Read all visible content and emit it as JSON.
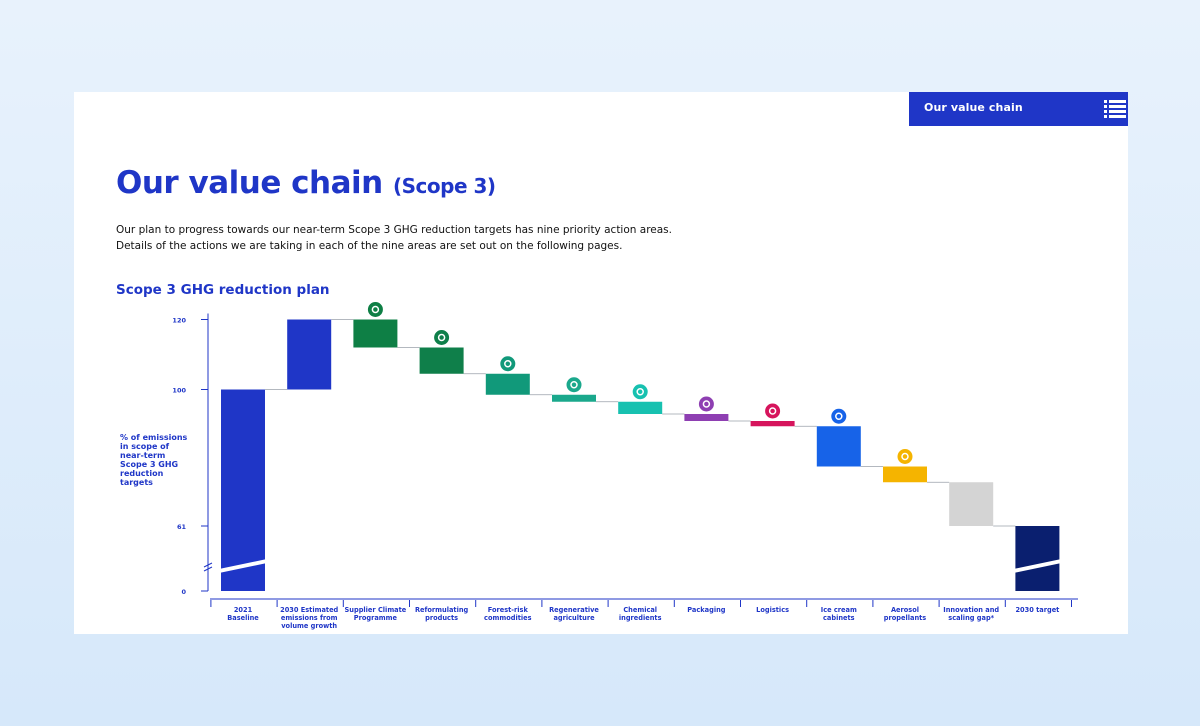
{
  "header": {
    "nav_title": "Our value chain",
    "menu_icon": "menu-icon"
  },
  "page": {
    "title_main": "Our value chain",
    "title_sub": "(Scope 3)",
    "intro_line1": "Our plan to progress towards our near-term Scope 3 GHG reduction targets has nine priority action areas.",
    "intro_line2": "Details of the actions we are taking in each of the nine areas are set out on the following pages.",
    "chart_heading": "Scope 3 GHG reduction plan"
  },
  "colors": {
    "brand": "#1f36c7",
    "background": "#ffffff"
  },
  "chart_data": {
    "type": "waterfall",
    "title": "Scope 3 GHG reduction plan",
    "ylabel_lines": [
      "% of emissions",
      "in scope of",
      "near-term",
      "Scope 3 GHG",
      "reduction",
      "targets"
    ],
    "y_ticks": [
      0,
      61,
      100,
      120
    ],
    "axis_break": true,
    "ylim": [
      0,
      120
    ],
    "steps": [
      {
        "label_lines": [
          "2021",
          "Baseline"
        ],
        "kind": "total",
        "start": 0,
        "end": 100,
        "color": "#1f36c7",
        "icon": null
      },
      {
        "label_lines": [
          "2030 Estimated",
          "emissions from",
          "volume growth"
        ],
        "kind": "increase",
        "start": 100,
        "end": 120,
        "color": "#1f36c7",
        "icon": null
      },
      {
        "label_lines": [
          "Supplier Climate",
          "Programme"
        ],
        "kind": "decrease",
        "start": 120,
        "end": 112,
        "color": "#0e7f45",
        "icon": "supplier-icon"
      },
      {
        "label_lines": [
          "Reformulating",
          "products"
        ],
        "kind": "decrease",
        "start": 112,
        "end": 104.5,
        "color": "#0f7f4a",
        "icon": "reformulating-icon"
      },
      {
        "label_lines": [
          "Forest-risk",
          "commodities"
        ],
        "kind": "decrease",
        "start": 104.5,
        "end": 98.5,
        "color": "#11997a",
        "icon": "forest-icon"
      },
      {
        "label_lines": [
          "Regenerative",
          "agriculture"
        ],
        "kind": "decrease",
        "start": 98.5,
        "end": 96.5,
        "color": "#1aa88c",
        "icon": "agriculture-icon"
      },
      {
        "label_lines": [
          "Chemical",
          "ingredients"
        ],
        "kind": "decrease",
        "start": 96.5,
        "end": 93,
        "color": "#17c1b0",
        "icon": "chemical-icon"
      },
      {
        "label_lines": [
          "Packaging"
        ],
        "kind": "decrease",
        "start": 93,
        "end": 91,
        "color": "#8e3fb2",
        "icon": "packaging-icon"
      },
      {
        "label_lines": [
          "Logistics"
        ],
        "kind": "decrease",
        "start": 91,
        "end": 89.5,
        "color": "#d6145c",
        "icon": "logistics-icon"
      },
      {
        "label_lines": [
          "Ice cream",
          "cabinets"
        ],
        "kind": "decrease",
        "start": 89.5,
        "end": 78,
        "color": "#1763e8",
        "icon": "ice-cream-icon"
      },
      {
        "label_lines": [
          "Aerosol",
          "propellants"
        ],
        "kind": "decrease",
        "start": 78,
        "end": 73.5,
        "color": "#f5b400",
        "icon": "aerosol-icon"
      },
      {
        "label_lines": [
          "Innovation and",
          "scaling gap*"
        ],
        "kind": "decrease",
        "start": 73.5,
        "end": 61,
        "color": "#d4d4d4",
        "icon": null
      },
      {
        "label_lines": [
          "2030 target"
        ],
        "kind": "total",
        "start": 0,
        "end": 61,
        "color": "#0a1f6f",
        "icon": null
      }
    ]
  }
}
